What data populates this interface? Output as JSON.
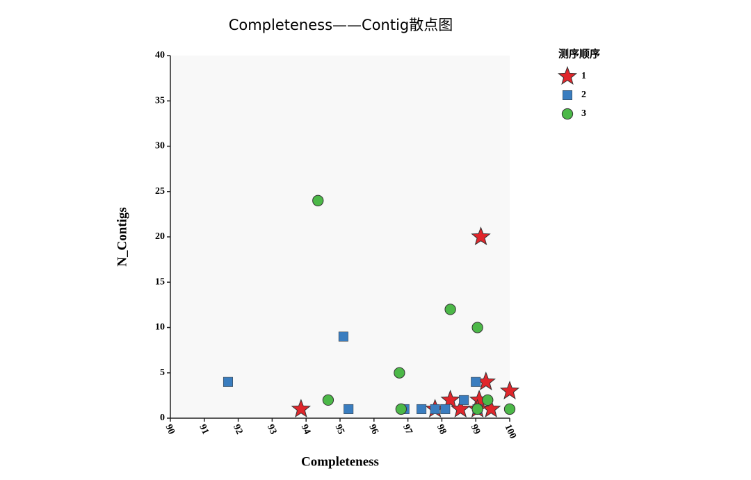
{
  "chart_data": {
    "type": "scatter",
    "title": "Completeness——Contig散点图",
    "x_label": "Completeness",
    "y_label": "N_Contigs",
    "legend_title": "测序顺序",
    "xlim": [
      90,
      100
    ],
    "xticks": [
      90,
      91,
      92,
      93,
      94,
      95,
      96,
      97,
      98,
      99,
      100
    ],
    "ylim": [
      0,
      40
    ],
    "yticks": [
      0,
      5,
      10,
      15,
      20,
      25,
      30,
      35,
      40
    ],
    "series": [
      {
        "name": "1",
        "color": "#e0262b",
        "marker": "star",
        "x": [
          93.85,
          99.15,
          99.3,
          100,
          98.25,
          97.8,
          98.55,
          99.1,
          99.45,
          99.05
        ],
        "values": [
          1,
          20,
          4,
          3,
          2,
          1,
          1,
          2,
          1,
          1
        ]
      },
      {
        "name": "2",
        "color": "#3a7dbf",
        "marker": "square",
        "x": [
          91.7,
          95.1,
          95.25,
          96.9,
          97.4,
          97.8,
          98.1,
          98.65,
          99.0,
          99.05
        ],
        "values": [
          4,
          9,
          1,
          1,
          1,
          1,
          1,
          2,
          4,
          1
        ]
      },
      {
        "name": "3",
        "color": "#4cb848",
        "marker": "circle",
        "x": [
          94.35,
          94.65,
          96.75,
          96.8,
          98.25,
          99.05,
          99.05,
          99.35,
          100
        ],
        "values": [
          24,
          2,
          5,
          1,
          12,
          10,
          1,
          2,
          1
        ]
      }
    ]
  }
}
